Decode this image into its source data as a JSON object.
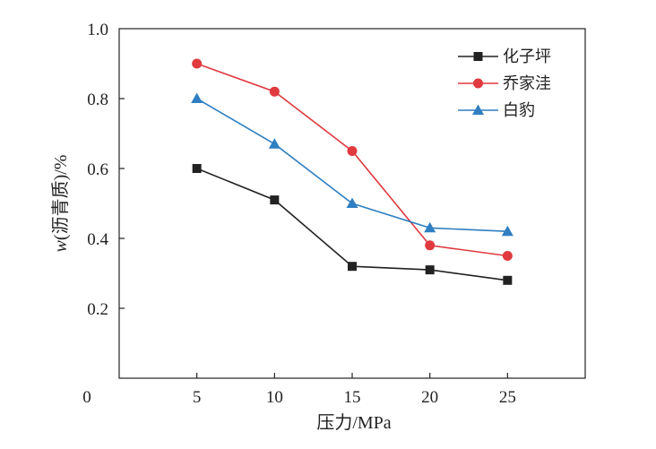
{
  "chart_data": {
    "type": "line",
    "x": [
      5,
      10,
      15,
      20,
      25
    ],
    "series": [
      {
        "name": "化子坪",
        "values": [
          0.6,
          0.51,
          0.32,
          0.31,
          0.28
        ],
        "color": "#222222",
        "marker": "square"
      },
      {
        "name": "乔家洼",
        "values": [
          0.9,
          0.82,
          0.65,
          0.38,
          0.35
        ],
        "color": "#e0393e",
        "marker": "circle"
      },
      {
        "name": "白豹",
        "values": [
          0.8,
          0.67,
          0.5,
          0.43,
          0.42
        ],
        "color": "#2f7fc1",
        "marker": "triangle"
      }
    ],
    "xlabel": "压力/MPa",
    "ylabel": "w(沥青质)/%",
    "xlim": [
      0,
      30
    ],
    "ylim": [
      0,
      1.0
    ],
    "x_ticks": [
      "0",
      "5",
      "10",
      "15",
      "20",
      "25"
    ],
    "y_ticks": [
      "0.2",
      "0.4",
      "0.6",
      "0.8",
      "1.0"
    ],
    "grid": false,
    "legend_position": "top-right"
  }
}
